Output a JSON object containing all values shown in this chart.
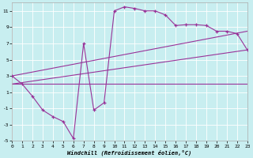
{
  "xlabel": "Windchill (Refroidissement éolien,°C)",
  "xlim": [
    0,
    23
  ],
  "ylim": [
    -5,
    12
  ],
  "xticks": [
    0,
    1,
    2,
    3,
    4,
    5,
    6,
    7,
    8,
    9,
    10,
    11,
    12,
    13,
    14,
    15,
    16,
    17,
    18,
    19,
    20,
    21,
    22,
    23
  ],
  "yticks": [
    -5,
    -3,
    -1,
    1,
    3,
    5,
    7,
    9,
    11
  ],
  "bg_color": "#c8eef0",
  "line_color": "#993399",
  "line1_x": [
    0,
    1,
    2,
    3,
    4,
    5,
    6,
    7,
    8,
    9,
    10,
    11,
    12,
    13,
    14,
    15,
    16,
    17,
    18,
    19,
    20,
    21,
    22,
    23
  ],
  "line1_y": [
    3,
    2,
    0.5,
    -1.2,
    -2.0,
    -2.6,
    -4.7,
    7.0,
    -1.2,
    -0.3,
    11.0,
    11.5,
    11.3,
    11.0,
    11.0,
    10.5,
    9.2,
    9.3,
    9.3,
    9.2,
    8.5,
    8.5,
    8.2,
    6.2
  ],
  "line2_x": [
    0,
    1,
    23
  ],
  "line2_y": [
    3,
    2,
    6.2
  ],
  "line3_x": [
    0,
    23
  ],
  "line3_y": [
    3,
    8.5
  ],
  "line4_x": [
    0,
    23
  ],
  "line4_y": [
    2,
    6.2
  ],
  "line5_x": [
    0,
    23
  ],
  "line5_y": [
    2,
    2.0
  ]
}
